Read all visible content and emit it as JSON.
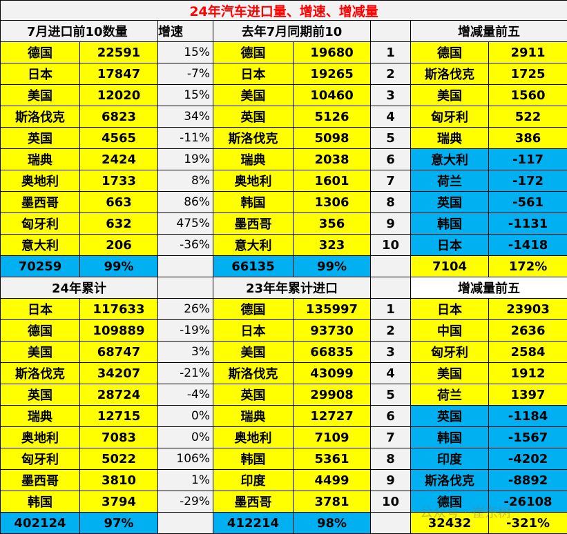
{
  "title": "24年汽车进口量、增速、增减量",
  "colors": {
    "yellow": "#ffff00",
    "blue": "#00b0f0",
    "title": "#ff0000"
  },
  "section1": {
    "h_import": "7月进口前10数量",
    "h_growth": "增速",
    "h_lastyear": "去年7月同期前10",
    "h_change": "增减量前五",
    "rows": [
      {
        "c": "德国",
        "v": "22591",
        "g": "15%",
        "lc": "德国",
        "lv": "19680",
        "rank": "1",
        "dc": "德国",
        "dv": "2911",
        "neg": false
      },
      {
        "c": "日本",
        "v": "17847",
        "g": "-7%",
        "lc": "日本",
        "lv": "19265",
        "rank": "2",
        "dc": "斯洛伐克",
        "dv": "1725",
        "neg": false
      },
      {
        "c": "美国",
        "v": "12020",
        "g": "15%",
        "lc": "美国",
        "lv": "10460",
        "rank": "3",
        "dc": "美国",
        "dv": "1560",
        "neg": false
      },
      {
        "c": "斯洛伐克",
        "v": "6823",
        "g": "34%",
        "lc": "英国",
        "lv": "5126",
        "rank": "4",
        "dc": "匈牙利",
        "dv": "522",
        "neg": false
      },
      {
        "c": "英国",
        "v": "4565",
        "g": "-11%",
        "lc": "斯洛伐克",
        "lv": "5098",
        "rank": "5",
        "dc": "瑞典",
        "dv": "386",
        "neg": false
      },
      {
        "c": "瑞典",
        "v": "2424",
        "g": "19%",
        "lc": "瑞典",
        "lv": "2038",
        "rank": "6",
        "dc": "意大利",
        "dv": "-117",
        "neg": true
      },
      {
        "c": "奥地利",
        "v": "1733",
        "g": "8%",
        "lc": "奥地利",
        "lv": "1601",
        "rank": "7",
        "dc": "荷兰",
        "dv": "-172",
        "neg": true
      },
      {
        "c": "墨西哥",
        "v": "663",
        "g": "86%",
        "lc": "韩国",
        "lv": "1306",
        "rank": "8",
        "dc": "英国",
        "dv": "-561",
        "neg": true
      },
      {
        "c": "匈牙利",
        "v": "632",
        "g": "475%",
        "lc": "墨西哥",
        "lv": "356",
        "rank": "9",
        "dc": "韩国",
        "dv": "-1131",
        "neg": true
      },
      {
        "c": "意大利",
        "v": "206",
        "g": "-36%",
        "lc": "意大利",
        "lv": "323",
        "rank": "10",
        "dc": "日本",
        "dv": "-1418",
        "neg": true
      }
    ],
    "total": {
      "v": "70259",
      "g": "99%",
      "lv": "66135",
      "lg": "99%",
      "dv": "7104",
      "dg": "172%"
    }
  },
  "section2": {
    "h_import": "24年累计",
    "h_lastyear": "23年年累计进口",
    "h_change": "增减量前五",
    "rows": [
      {
        "c": "日本",
        "v": "117633",
        "g": "26%",
        "lc": "德国",
        "lv": "135997",
        "rank": "1",
        "dc": "日本",
        "dv": "23903",
        "neg": false
      },
      {
        "c": "德国",
        "v": "109889",
        "g": "-19%",
        "lc": "日本",
        "lv": "93730",
        "rank": "2",
        "dc": "中国",
        "dv": "2636",
        "neg": false
      },
      {
        "c": "美国",
        "v": "68747",
        "g": "3%",
        "lc": "美国",
        "lv": "66835",
        "rank": "3",
        "dc": "匈牙利",
        "dv": "2584",
        "neg": false
      },
      {
        "c": "斯洛伐克",
        "v": "34207",
        "g": "-21%",
        "lc": "斯洛伐克",
        "lv": "43099",
        "rank": "4",
        "dc": "美国",
        "dv": "1912",
        "neg": false
      },
      {
        "c": "英国",
        "v": "28724",
        "g": "-4%",
        "lc": "英国",
        "lv": "29908",
        "rank": "5",
        "dc": "荷兰",
        "dv": "1397",
        "neg": false
      },
      {
        "c": "瑞典",
        "v": "12715",
        "g": "0%",
        "lc": "瑞典",
        "lv": "12727",
        "rank": "6",
        "dc": "英国",
        "dv": "-1184",
        "neg": true
      },
      {
        "c": "奥地利",
        "v": "7083",
        "g": "0%",
        "lc": "奥地利",
        "lv": "7109",
        "rank": "7",
        "dc": "韩国",
        "dv": "-1567",
        "neg": true
      },
      {
        "c": "匈牙利",
        "v": "5022",
        "g": "106%",
        "lc": "韩国",
        "lv": "5361",
        "rank": "8",
        "dc": "印度",
        "dv": "-4202",
        "neg": true
      },
      {
        "c": "墨西哥",
        "v": "3810",
        "g": "1%",
        "lc": "印度",
        "lv": "4499",
        "rank": "9",
        "dc": "斯洛伐克",
        "dv": "-8892",
        "neg": true
      },
      {
        "c": "韩国",
        "v": "3794",
        "g": "-29%",
        "lc": "墨西哥",
        "lv": "3781",
        "rank": "10",
        "dc": "德国",
        "dv": "-26108",
        "neg": true
      }
    ],
    "total": {
      "v": "402124",
      "g": "97%",
      "lv": "412214",
      "lg": "98%",
      "dv": "32432",
      "dg": "-321%"
    }
  },
  "watermark": "公众号 · 崔东树"
}
